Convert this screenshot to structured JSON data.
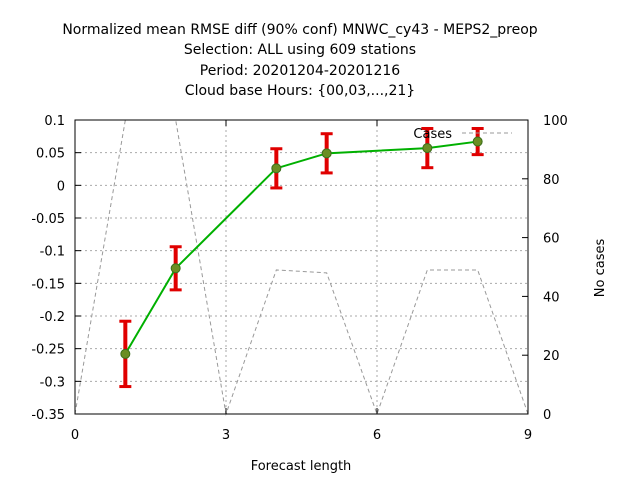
{
  "chart_data": {
    "type": "line",
    "title_lines": [
      "Normalized mean RMSE diff (90% conf) MNWC_cy43 - MEPS2_preop",
      "Selection: ALL using   609 stations",
      "Period: 20201204-20201216",
      "Cloud base   Hours: {00,03,...,21}"
    ],
    "xlabel": "Forecast length",
    "ylabel": "",
    "y2label": "No cases",
    "xlim": [
      0,
      9
    ],
    "ylim": [
      -0.35,
      0.1
    ],
    "y2lim": [
      0,
      100
    ],
    "x_ticks": [
      "0",
      "3",
      "6",
      "9"
    ],
    "y_ticks": [
      "0.1",
      "0.05",
      "0",
      "-0.05",
      "-0.1",
      "-0.15",
      "-0.2",
      "-0.25",
      "-0.3",
      "-0.35"
    ],
    "y2_ticks": [
      "100",
      "80",
      "60",
      "40",
      "20",
      "0"
    ],
    "grid": true,
    "legend_position": "top-right",
    "series": [
      {
        "name": "",
        "color": "#00b000",
        "marker_color": "#6b8e23",
        "errorbar_color": "#e00000",
        "x": [
          1,
          2,
          4,
          5,
          7,
          8
        ],
        "y": [
          -0.258,
          -0.127,
          0.026,
          0.049,
          0.057,
          0.067
        ],
        "err_low": [
          -0.308,
          -0.16,
          -0.004,
          0.019,
          0.027,
          0.047
        ],
        "err_high": [
          -0.208,
          -0.094,
          0.056,
          0.079,
          0.087,
          0.087
        ]
      },
      {
        "name": "Cases",
        "color": "#999999",
        "dashed": true,
        "axis": "y2",
        "x": [
          0,
          1,
          2,
          3,
          4,
          5,
          6,
          7,
          8,
          9
        ],
        "y": [
          0,
          100,
          100,
          0,
          49,
          48,
          0,
          49,
          49,
          0
        ]
      }
    ]
  }
}
